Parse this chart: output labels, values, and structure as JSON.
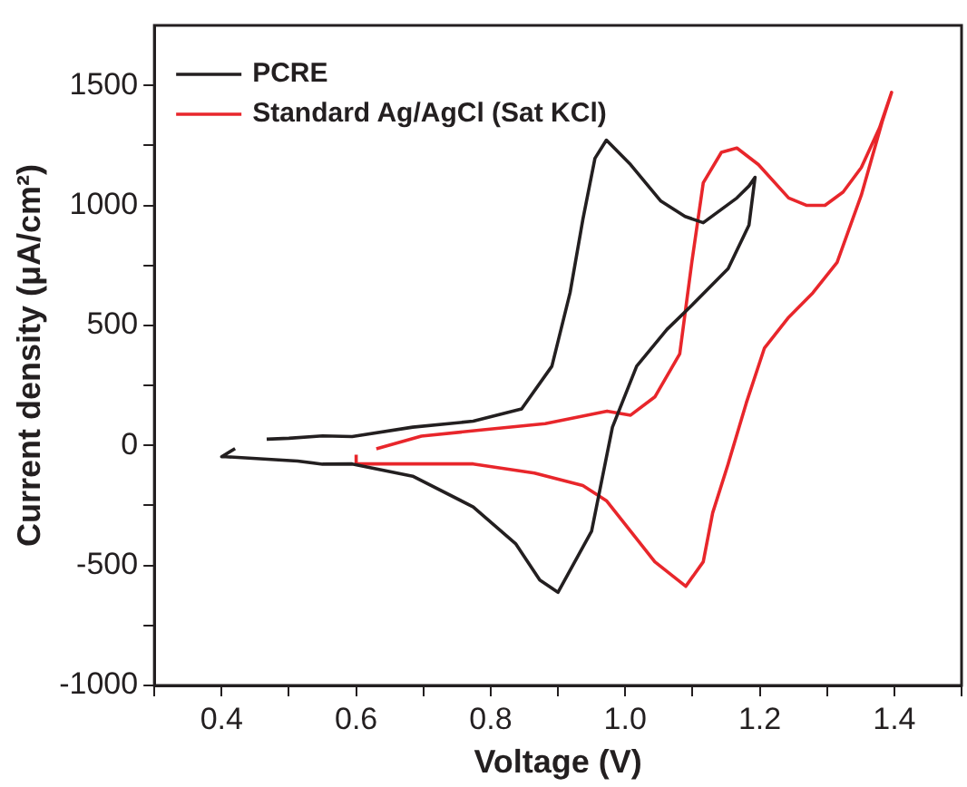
{
  "chart_data": {
    "type": "line",
    "xlabel": "Voltage (V)",
    "ylabel": "Current density (μA/cm²)",
    "xlim": [
      0.3,
      1.5
    ],
    "xticks": [
      {
        "value": 0.3,
        "label": null
      },
      0.4,
      {
        "value": 0.5,
        "label": null
      },
      0.6,
      {
        "value": 0.7,
        "label": null
      },
      0.8,
      {
        "value": 0.9,
        "label": null
      },
      {
        "value": 1.0,
        "label": "1.0"
      },
      {
        "value": 1.1,
        "label": null
      },
      1.2,
      {
        "value": 1.3,
        "label": null
      },
      1.4,
      {
        "value": 1.5,
        "label": null
      }
    ],
    "ylim": [
      -1000,
      1750
    ],
    "yticks": [
      -1000,
      {
        "value": -750,
        "label": null
      },
      -500,
      {
        "value": -250,
        "label": null
      },
      0,
      {
        "value": 250,
        "label": null
      },
      500,
      {
        "value": 750,
        "label": null
      },
      1000,
      {
        "value": 1250,
        "label": null
      },
      1500
    ],
    "legend": "top left",
    "marker": "none",
    "line_style": "solid",
    "grid": false,
    "series": [
      {
        "name": "PCRE",
        "color": "#231f20",
        "x": [
          0.467,
          0.5,
          0.55,
          0.594,
          0.684,
          0.774,
          0.846,
          0.891,
          0.918,
          0.937,
          0.955,
          0.972,
          1.008,
          1.053,
          1.089,
          1.116,
          1.166,
          1.184,
          1.193,
          1.184,
          1.153,
          1.099,
          1.062,
          1.017,
          0.981,
          0.95,
          0.9,
          0.873,
          0.837,
          0.774,
          0.684,
          0.594,
          0.55,
          0.513,
          0.406,
          0.4,
          0.42
        ],
        "values": [
          26,
          30,
          40,
          37,
          76,
          101,
          152,
          330,
          636,
          941,
          1196,
          1272,
          1170,
          1018,
          954,
          928,
          1031,
          1081,
          1117,
          918,
          737,
          584,
          483,
          330,
          76,
          -357,
          -612,
          -561,
          -409,
          -256,
          -128,
          -77,
          -78,
          -65,
          -47,
          -47,
          -13
        ]
      },
      {
        "name": "Standard Ag/AgCl (Sat KCl)",
        "color": "#e8262b",
        "x": [
          0.63,
          0.697,
          0.789,
          0.881,
          0.973,
          1.008,
          1.044,
          1.081,
          1.099,
          1.116,
          1.143,
          1.166,
          1.198,
          1.243,
          1.27,
          1.297,
          1.324,
          1.351,
          1.378,
          1.396,
          1.382,
          1.351,
          1.315,
          1.279,
          1.243,
          1.207,
          1.18,
          1.153,
          1.13,
          1.116,
          1.09,
          1.044,
          1.008,
          0.972,
          0.937,
          0.865,
          0.774,
          0.684,
          0.612,
          0.6,
          0.6
        ],
        "values": [
          -14,
          39,
          65,
          91,
          143,
          126,
          202,
          381,
          763,
          1094,
          1221,
          1239,
          1170,
          1031,
          1000,
          1000,
          1056,
          1158,
          1323,
          1471,
          1349,
          1043,
          763,
          636,
          534,
          406,
          177,
          -77,
          -281,
          -485,
          -587,
          -485,
          -357,
          -230,
          -167,
          -115,
          -77,
          -77,
          -77,
          -77,
          -39
        ]
      }
    ]
  }
}
